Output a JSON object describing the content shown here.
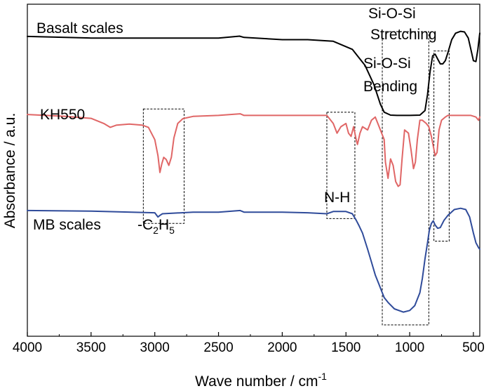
{
  "chart_data": {
    "type": "line",
    "title": "",
    "xlabel": "Wave number / cm",
    "xlabel_sup": "-1",
    "ylabel": "Absorbance / a.u.",
    "xlim": [
      4000,
      450
    ],
    "x_reversed": true,
    "x_ticks": [
      4000,
      3500,
      3000,
      2500,
      2000,
      1500,
      1000,
      500
    ],
    "y_ticks": [],
    "grid": false,
    "legend": "none",
    "series": [
      {
        "name": "Basalt scales",
        "color": "#000000",
        "points": [
          [
            4000,
            0.7
          ],
          [
            3500,
            0.695
          ],
          [
            3000,
            0.695
          ],
          [
            2500,
            0.695
          ],
          [
            2335,
            0.701
          ],
          [
            2300,
            0.697
          ],
          [
            2000,
            0.69
          ],
          [
            1800,
            0.69
          ],
          [
            1600,
            0.685
          ],
          [
            1450,
            0.66
          ],
          [
            1350,
            0.61
          ],
          [
            1280,
            0.55
          ],
          [
            1230,
            0.49
          ],
          [
            1200,
            0.465
          ],
          [
            1150,
            0.456
          ],
          [
            1100,
            0.455
          ],
          [
            1000,
            0.455
          ],
          [
            920,
            0.456
          ],
          [
            880,
            0.47
          ],
          [
            860,
            0.52
          ],
          [
            840,
            0.59
          ],
          [
            820,
            0.64
          ],
          [
            800,
            0.645
          ],
          [
            780,
            0.63
          ],
          [
            760,
            0.615
          ],
          [
            740,
            0.615
          ],
          [
            720,
            0.625
          ],
          [
            700,
            0.65
          ],
          [
            670,
            0.69
          ],
          [
            640,
            0.71
          ],
          [
            600,
            0.716
          ],
          [
            570,
            0.714
          ],
          [
            540,
            0.695
          ],
          [
            520,
            0.66
          ],
          [
            500,
            0.625
          ],
          [
            480,
            0.622
          ],
          [
            465,
            0.66
          ],
          [
            450,
            0.71
          ]
        ]
      },
      {
        "name": "KH550",
        "color": "#e06666",
        "points": [
          [
            4000,
            0.458
          ],
          [
            3700,
            0.452
          ],
          [
            3500,
            0.446
          ],
          [
            3400,
            0.43
          ],
          [
            3350,
            0.418
          ],
          [
            3300,
            0.425
          ],
          [
            3200,
            0.428
          ],
          [
            3100,
            0.425
          ],
          [
            3050,
            0.418
          ],
          [
            3000,
            0.38
          ],
          [
            2975,
            0.33
          ],
          [
            2960,
            0.278
          ],
          [
            2945,
            0.305
          ],
          [
            2930,
            0.325
          ],
          [
            2910,
            0.318
          ],
          [
            2890,
            0.3
          ],
          [
            2870,
            0.325
          ],
          [
            2850,
            0.385
          ],
          [
            2820,
            0.43
          ],
          [
            2780,
            0.445
          ],
          [
            2700,
            0.452
          ],
          [
            2500,
            0.455
          ],
          [
            2330,
            0.46
          ],
          [
            2300,
            0.455
          ],
          [
            2000,
            0.455
          ],
          [
            1800,
            0.455
          ],
          [
            1650,
            0.455
          ],
          [
            1600,
            0.43
          ],
          [
            1570,
            0.4
          ],
          [
            1540,
            0.42
          ],
          [
            1500,
            0.43
          ],
          [
            1480,
            0.4
          ],
          [
            1460,
            0.39
          ],
          [
            1440,
            0.42
          ],
          [
            1420,
            0.38
          ],
          [
            1410,
            0.365
          ],
          [
            1390,
            0.4
          ],
          [
            1370,
            0.42
          ],
          [
            1330,
            0.41
          ],
          [
            1300,
            0.44
          ],
          [
            1270,
            0.45
          ],
          [
            1240,
            0.42
          ],
          [
            1200,
            0.38
          ],
          [
            1190,
            0.31
          ],
          [
            1170,
            0.26
          ],
          [
            1150,
            0.32
          ],
          [
            1130,
            0.3
          ],
          [
            1110,
            0.25
          ],
          [
            1090,
            0.235
          ],
          [
            1075,
            0.24
          ],
          [
            1060,
            0.32
          ],
          [
            1040,
            0.41
          ],
          [
            1010,
            0.4
          ],
          [
            990,
            0.35
          ],
          [
            970,
            0.29
          ],
          [
            955,
            0.31
          ],
          [
            940,
            0.38
          ],
          [
            920,
            0.44
          ],
          [
            900,
            0.44
          ],
          [
            870,
            0.43
          ],
          [
            850,
            0.42
          ],
          [
            830,
            0.39
          ],
          [
            815,
            0.36
          ],
          [
            800,
            0.33
          ],
          [
            785,
            0.34
          ],
          [
            770,
            0.41
          ],
          [
            750,
            0.44
          ],
          [
            720,
            0.45
          ],
          [
            700,
            0.455
          ],
          [
            600,
            0.455
          ],
          [
            520,
            0.455
          ],
          [
            480,
            0.45
          ],
          [
            460,
            0.44
          ],
          [
            450,
            0.45
          ]
        ]
      },
      {
        "name": "MB scales",
        "color": "#2f4b9a",
        "points": [
          [
            4000,
            0.16
          ],
          [
            3500,
            0.158
          ],
          [
            3000,
            0.153
          ],
          [
            2975,
            0.14
          ],
          [
            2960,
            0.145
          ],
          [
            2940,
            0.15
          ],
          [
            2700,
            0.155
          ],
          [
            2500,
            0.155
          ],
          [
            2330,
            0.16
          ],
          [
            2300,
            0.155
          ],
          [
            2000,
            0.155
          ],
          [
            1800,
            0.153
          ],
          [
            1650,
            0.15
          ],
          [
            1600,
            0.157
          ],
          [
            1500,
            0.157
          ],
          [
            1450,
            0.15
          ],
          [
            1420,
            0.13
          ],
          [
            1400,
            0.115
          ],
          [
            1370,
            0.09
          ],
          [
            1330,
            0.04
          ],
          [
            1300,
            0.0
          ],
          [
            1270,
            -0.04
          ],
          [
            1240,
            -0.07
          ],
          [
            1220,
            -0.09
          ],
          [
            1200,
            -0.11
          ],
          [
            1170,
            -0.125
          ],
          [
            1120,
            -0.145
          ],
          [
            1050,
            -0.155
          ],
          [
            1000,
            -0.15
          ],
          [
            960,
            -0.135
          ],
          [
            920,
            -0.095
          ],
          [
            900,
            -0.05
          ],
          [
            880,
            0.01
          ],
          [
            860,
            0.06
          ],
          [
            845,
            0.1
          ],
          [
            830,
            0.12
          ],
          [
            815,
            0.128
          ],
          [
            800,
            0.115
          ],
          [
            780,
            0.105
          ],
          [
            760,
            0.107
          ],
          [
            730,
            0.13
          ],
          [
            700,
            0.145
          ],
          [
            650,
            0.163
          ],
          [
            600,
            0.167
          ],
          [
            560,
            0.163
          ],
          [
            530,
            0.14
          ],
          [
            500,
            0.09
          ],
          [
            480,
            0.06
          ],
          [
            460,
            0.045
          ],
          [
            450,
            0.04
          ]
        ]
      }
    ],
    "labels": {
      "basalt": "Basalt scales",
      "kh550": "KH550",
      "mb": "MB scales",
      "c2h5_prefix": "-C",
      "c2h5_sub1": "2",
      "c2h5_mid": "H",
      "c2h5_sub2": "5",
      "nh": "N-H",
      "sioSi_stretch_1": "Si-O-Si",
      "sioSi_stretch_2": "Stretching",
      "sioSi_bend_1": "Si-O-Si",
      "sioSi_bend_2": "Bending"
    },
    "annotation_boxes": [
      {
        "name": "c2h5-box",
        "x_from": 3090,
        "x_to": 2770,
        "y_from": 0.12,
        "y_to": 0.475
      },
      {
        "name": "nh-box",
        "x_from": 1650,
        "x_to": 1430,
        "y_from": 0.135,
        "y_to": 0.465
      },
      {
        "name": "stretching-box",
        "x_from": 1215,
        "x_to": 850,
        "y_from": -0.195,
        "y_to": 0.715
      },
      {
        "name": "bending-box",
        "x_from": 810,
        "x_to": 690,
        "y_from": 0.065,
        "y_to": 0.655
      }
    ]
  }
}
